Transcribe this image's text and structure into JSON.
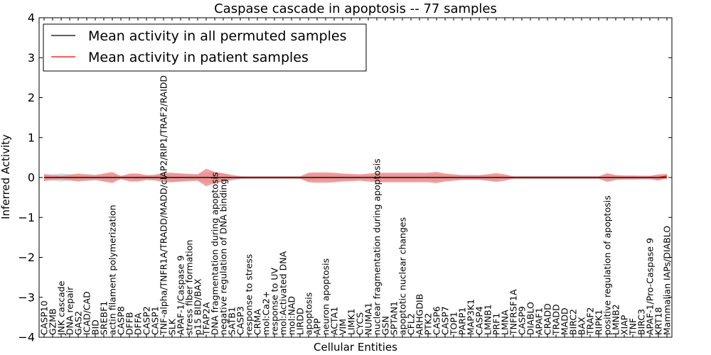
{
  "chart_data": {
    "type": "line",
    "title": "Caspase cascade in apoptosis -- 77 samples",
    "xlabel": "Cellular Entities",
    "ylabel": "Inferred Activity",
    "ylim": [
      -4,
      4
    ],
    "yticks": [
      -4,
      -3,
      -2,
      -1,
      0,
      1,
      2,
      3,
      4
    ],
    "ytick_labels": [
      "−4",
      "−3",
      "−2",
      "−1",
      "0",
      "1",
      "2",
      "3",
      "4"
    ],
    "grid": false,
    "legend_position": "top-left",
    "categories": [
      "CASP10",
      "GZMB",
      "JNK cascade",
      "DNA repair",
      "GAS2",
      "ICAD/CAD",
      "BID",
      "SREBF1",
      "actin filament polymerization",
      "CASP8",
      "DFFB",
      "DFFA",
      "CASP2",
      "CASP1",
      "TNF-alpha/TNFR1A/TRADD/MADD/cIAP2/RIP1/TRAF2/RAIDD",
      "SLK",
      "APAF-1/Caspase 9",
      "stress fiber formation",
      "p15 BID/BAX",
      "TFAP2A",
      "DNA fragmentation during apoptosis",
      "negative regulation of DNA binding",
      "SATB1",
      "CASP3",
      "response to stress",
      "CRMA",
      "mol:Ca2+",
      "response to UV",
      "mol:Activated DNA",
      "mol:NAD",
      "LIRDD",
      "apoptosis",
      "APP",
      "neuron apoptosis",
      "ACTA1",
      "VIM",
      "LIMK1",
      "CYCS",
      "NUMA1",
      "nuclear fragmentation during apoptosis",
      "GSN",
      "SPTAN1",
      "apoptotic nuclear changes",
      "CFL2",
      "ARHGDIB",
      "PTK2",
      "CASP6",
      "CASP7",
      "TOP1",
      "PARP1",
      "MAP3K1",
      "CASP4",
      "LMNB1",
      "PRF1",
      "LMNA",
      "TNFRSF1A",
      "CASP9",
      "DIABLO",
      "APAF1",
      "CRADD",
      "TRADD",
      "MADD",
      "BIRC2",
      "BAX",
      "TRAF2",
      "RIPK1",
      "positive regulation of apoptosis",
      "LMNB2",
      "XIAP",
      "TNF",
      "BIRC3",
      "APAF-1/Pro-Caspase 9",
      "KRT18",
      "Mammalian IAPs/DIABLO"
    ],
    "series": [
      {
        "name": "Mean activity in all permuted samples",
        "color": "#000000",
        "band_color": "#c8c8c8",
        "values": [
          0,
          0,
          0,
          0,
          0,
          0,
          0,
          0,
          0,
          0,
          0,
          0,
          0,
          0,
          0,
          0,
          0,
          0,
          0,
          0,
          0,
          0,
          0,
          0,
          0,
          0,
          0,
          0,
          0,
          0,
          0,
          0,
          0,
          0,
          0,
          0,
          0,
          0,
          0,
          0,
          0,
          0,
          0,
          0,
          0,
          0,
          0,
          0,
          0,
          0,
          0,
          0,
          0,
          0,
          0,
          0,
          0,
          0,
          0,
          0,
          0,
          0,
          0,
          0,
          0,
          0,
          0,
          0,
          0,
          0,
          0,
          0,
          0,
          0
        ],
        "spread": [
          0.07,
          0.08,
          0.1,
          0.08,
          0.07,
          0.09,
          0.07,
          0.08,
          0.09,
          0.06,
          0.06,
          0.07,
          0.06,
          0.06,
          0.08,
          0.09,
          0.1,
          0.1,
          0.08,
          0.12,
          0.14,
          0.1,
          0.08,
          0.04,
          0.03,
          0.03,
          0.03,
          0.03,
          0.03,
          0.03,
          0.03,
          0.08,
          0.08,
          0.08,
          0.08,
          0.07,
          0.07,
          0.06,
          0.07,
          0.08,
          0.08,
          0.08,
          0.08,
          0.07,
          0.08,
          0.08,
          0.09,
          0.07,
          0.06,
          0.06,
          0.06,
          0.05,
          0.07,
          0.06,
          0.05,
          0.04,
          0.04,
          0.04,
          0.04,
          0.04,
          0.04,
          0.04,
          0.04,
          0.04,
          0.04,
          0.04,
          0.07,
          0.06,
          0.05,
          0.05,
          0.05,
          0.05,
          0.06,
          0.05
        ]
      },
      {
        "name": "Mean activity in patient samples",
        "color": "#ff0000",
        "band_color": "#f08080",
        "values": [
          0,
          0,
          0,
          0,
          0,
          0,
          0,
          0,
          0,
          0,
          0,
          0,
          0,
          0,
          0,
          0,
          0,
          0,
          0,
          0,
          0,
          0,
          0,
          0,
          0,
          0,
          0,
          0,
          0,
          0,
          0,
          0,
          0,
          0,
          0,
          0,
          0,
          0,
          0,
          0,
          0,
          0,
          0,
          0,
          0,
          0,
          0,
          0,
          0,
          0,
          0,
          0,
          0,
          0,
          0,
          0,
          0,
          0,
          0,
          0,
          0,
          0,
          0,
          0,
          0,
          0,
          0,
          0,
          0,
          0,
          0,
          0,
          0,
          0.04
        ],
        "spread": [
          0.09,
          0.06,
          0.05,
          0.07,
          0.1,
          0.07,
          0.06,
          0.1,
          0.14,
          0.03,
          0.1,
          0.1,
          0.06,
          0.07,
          0.12,
          0.12,
          0.1,
          0.08,
          0.08,
          0.22,
          0.14,
          0.11,
          0.05,
          0.03,
          0.03,
          0.03,
          0.03,
          0.03,
          0.03,
          0.03,
          0.03,
          0.12,
          0.13,
          0.13,
          0.12,
          0.1,
          0.09,
          0.08,
          0.1,
          0.12,
          0.12,
          0.12,
          0.12,
          0.12,
          0.12,
          0.12,
          0.14,
          0.1,
          0.08,
          0.06,
          0.06,
          0.06,
          0.08,
          0.11,
          0.08,
          0.03,
          0.03,
          0.03,
          0.03,
          0.03,
          0.03,
          0.03,
          0.03,
          0.03,
          0.03,
          0.03,
          0.11,
          0.06,
          0.05,
          0.05,
          0.04,
          0.04,
          0.08,
          0.05
        ]
      }
    ]
  }
}
